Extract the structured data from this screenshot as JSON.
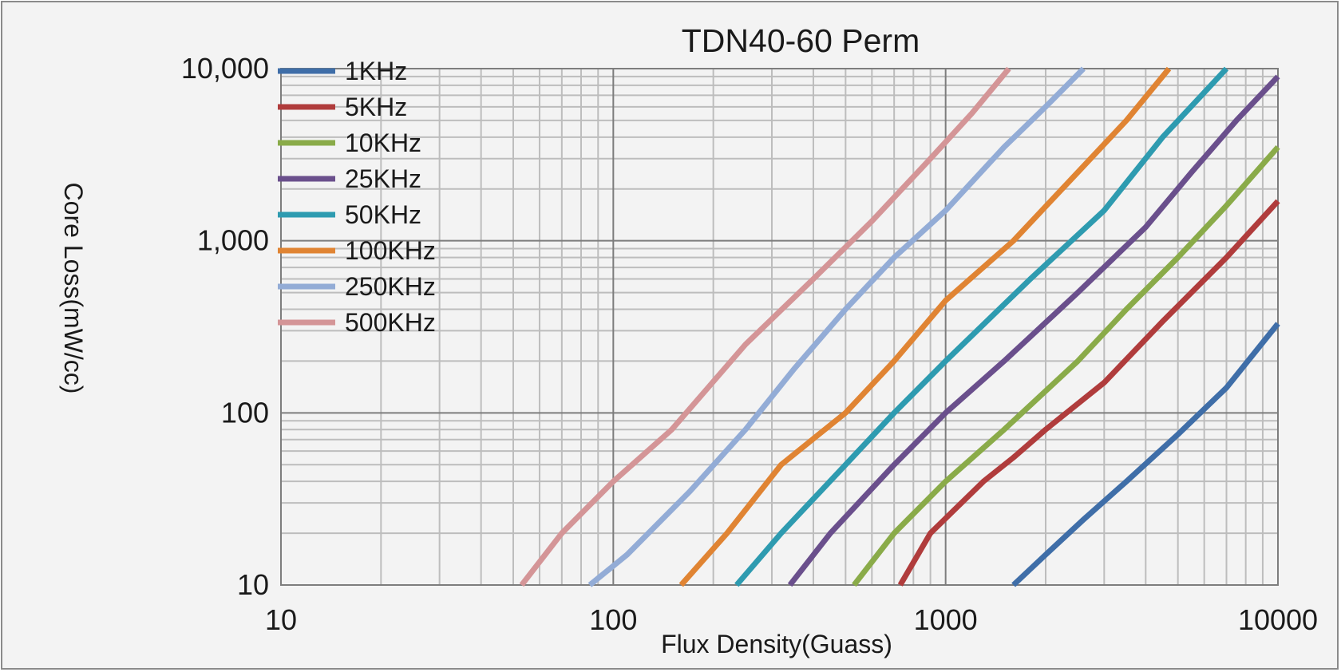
{
  "chart_data": {
    "type": "line",
    "title": "TDN40-60 Perm",
    "xlabel": "Flux Density(Guass)",
    "ylabel": "Core Loss(mW/cc)",
    "x_scale": "log",
    "y_scale": "log",
    "xlim": [
      10,
      10000
    ],
    "ylim": [
      10,
      10000
    ],
    "x_ticks": [
      10,
      100,
      1000,
      10000
    ],
    "x_tick_labels": [
      "10",
      "100",
      "1000",
      "10000"
    ],
    "y_ticks": [
      10,
      100,
      1000,
      10000
    ],
    "y_tick_labels": [
      "10",
      "100",
      "1,000",
      "10,000"
    ],
    "grid": true,
    "legend_position": "top-left",
    "series": [
      {
        "name": "1KHz",
        "color": "#3f6ea8",
        "points": [
          [
            1600,
            10
          ],
          [
            2000,
            15
          ],
          [
            2600,
            24
          ],
          [
            3500,
            40
          ],
          [
            5000,
            75
          ],
          [
            7000,
            140
          ],
          [
            10000,
            330
          ]
        ]
      },
      {
        "name": "5KHz",
        "color": "#b03c3c",
        "points": [
          [
            730,
            10
          ],
          [
            900,
            20
          ],
          [
            1300,
            40
          ],
          [
            1600,
            55
          ],
          [
            2000,
            80
          ],
          [
            3000,
            150
          ],
          [
            4500,
            340
          ],
          [
            7000,
            800
          ],
          [
            10000,
            1700
          ]
        ]
      },
      {
        "name": "10KHz",
        "color": "#8aab49",
        "points": [
          [
            530,
            10
          ],
          [
            700,
            20
          ],
          [
            1000,
            40
          ],
          [
            1500,
            80
          ],
          [
            2500,
            200
          ],
          [
            3500,
            400
          ],
          [
            5000,
            800
          ],
          [
            7000,
            1600
          ],
          [
            10000,
            3500
          ]
        ]
      },
      {
        "name": "25KHz",
        "color": "#6a4f8c",
        "points": [
          [
            340,
            10
          ],
          [
            450,
            20
          ],
          [
            700,
            50
          ],
          [
            1000,
            100
          ],
          [
            1500,
            200
          ],
          [
            2500,
            500
          ],
          [
            4000,
            1200
          ],
          [
            5500,
            2500
          ],
          [
            7500,
            5000
          ],
          [
            10000,
            9000
          ]
        ]
      },
      {
        "name": "50KHz",
        "color": "#2e9bb0",
        "points": [
          [
            235,
            10
          ],
          [
            320,
            20
          ],
          [
            500,
            50
          ],
          [
            700,
            100
          ],
          [
            1000,
            200
          ],
          [
            1800,
            600
          ],
          [
            3000,
            1500
          ],
          [
            4500,
            4000
          ],
          [
            7000,
            10000
          ]
        ]
      },
      {
        "name": "100KHz",
        "color": "#e08433",
        "points": [
          [
            160,
            10
          ],
          [
            220,
            20
          ],
          [
            320,
            50
          ],
          [
            500,
            100
          ],
          [
            700,
            200
          ],
          [
            1000,
            450
          ],
          [
            1600,
            1000
          ],
          [
            2500,
            2500
          ],
          [
            3500,
            5000
          ],
          [
            4700,
            10000
          ]
        ]
      },
      {
        "name": "250KHz",
        "color": "#93acd6",
        "points": [
          [
            85,
            10
          ],
          [
            110,
            15
          ],
          [
            170,
            35
          ],
          [
            250,
            80
          ],
          [
            350,
            180
          ],
          [
            500,
            400
          ],
          [
            700,
            800
          ],
          [
            1000,
            1500
          ],
          [
            1500,
            3500
          ],
          [
            2000,
            6000
          ],
          [
            2600,
            10000
          ]
        ]
      },
      {
        "name": "500KHz",
        "color": "#d49597",
        "points": [
          [
            53,
            10
          ],
          [
            70,
            20
          ],
          [
            100,
            40
          ],
          [
            150,
            80
          ],
          [
            250,
            250
          ],
          [
            400,
            600
          ],
          [
            600,
            1300
          ],
          [
            900,
            3000
          ],
          [
            1200,
            5500
          ],
          [
            1550,
            10000
          ]
        ]
      }
    ]
  }
}
